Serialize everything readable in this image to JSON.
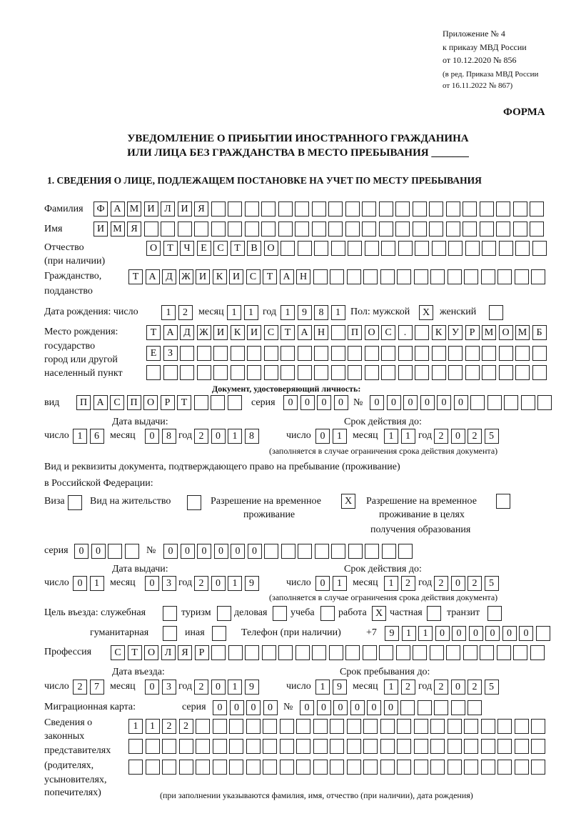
{
  "header": {
    "appendix": "Приложение № 4",
    "order": "к приказу МВД России",
    "order_date": "от 10.12.2020 № 856",
    "edition": "(в ред. Приказа МВД России",
    "edition_date": "от 16.11.2022 № 867)",
    "form_label": "ФОРМА",
    "title_line1": "УВЕДОМЛЕНИЕ О ПРИБЫТИИ ИНОСТРАННОГО ГРАЖДАНИНА",
    "title_line2": "ИЛИ ЛИЦА БЕЗ ГРАЖДАНСТВА В МЕСТО ПРЕБЫВАНИЯ _______",
    "section1": "1. СВЕДЕНИЯ О ЛИЦЕ, ПОДЛЕЖАЩЕМ ПОСТАНОВКЕ НА УЧЕТ ПО МЕСТУ ПРЕБЫВАНИЯ"
  },
  "labels": {
    "surname": "Фамилия",
    "name": "Имя",
    "patronymic": "Отчество",
    "patronymic2": "(при наличии)",
    "citizenship": "Гражданство,",
    "citizenship2": "подданство",
    "birth_date": "Дата рождения:  число",
    "day": "число",
    "month": "месяц",
    "year": "год",
    "sex": "Пол: мужской",
    "female": "женский",
    "birthplace1": "Место рождения:",
    "birthplace2": "государство",
    "birthplace3": "город или другой",
    "birthplace4": "населенный пункт",
    "id_doc": "Документ, удостоверяющий личность:",
    "kind": "вид",
    "series": "серия",
    "number": "№",
    "issue_date": "Дата выдачи:",
    "valid_until": "Срок действия до:",
    "validity_note": "(заполняется в случае ограничения срока действия документа)",
    "right_doc1": "Вид и реквизиты документа, подтверждающего право на пребывание (проживание)",
    "right_doc2": "в Российской Федерации:",
    "visa": "Виза",
    "residence": "Вид на жительство",
    "temp_permit1": "Разрешение на временное",
    "temp_permit2": "проживание",
    "edu_permit1": "Разрешение на временное",
    "edu_permit2": "проживание в целях",
    "edu_permit3": "получения образования",
    "purpose": "Цель въезда: служебная",
    "tourism": "туризм",
    "business": "деловая",
    "study": "учеба",
    "work": "работа",
    "private": "частная",
    "transit": "транзит",
    "humanitarian": "гуманитарная",
    "other": "иная",
    "phone": "Телефон (при наличии)",
    "phone_prefix": "+7",
    "profession": "Профессия",
    "entry_date": "Дата въезда:",
    "stay_until": "Срок пребывания до:",
    "migration_card": "Миграционная карта:",
    "reps1": "Сведения о",
    "reps2": "законных",
    "reps3": "представителях",
    "reps4": "(родителях,",
    "reps5": "усыновителях,",
    "reps6": "попечителях)",
    "reps_note": "(при заполнении указываются фамилия, имя, отчество (при наличии), дата рождения)"
  },
  "values": {
    "surname": "ФАМИЛИЯ",
    "name": "ИМЯ",
    "patronymic": "ОТЧЕСТВО",
    "citizenship": "ТАДЖИКИСТАН",
    "birth_day": "12",
    "birth_month": "11",
    "birth_year": "1981",
    "sex_male": "X",
    "sex_female": "",
    "birthplace_row1": "ТАДЖИКИСТАН ПОС. КУРМОМБ",
    "birthplace_row2": "ЕЗ",
    "birthplace_row3": "",
    "id_kind": "ПАСПОРТ",
    "id_series": "0000",
    "id_number": "000000",
    "id_issue_day": "16",
    "id_issue_month": "08",
    "id_issue_year": "2018",
    "id_valid_day": "01",
    "id_valid_month": "11",
    "id_valid_year": "2025",
    "visa": "",
    "residence": "",
    "temp_permit": "X",
    "edu_permit": "",
    "permit_series": "00",
    "permit_number": "000000",
    "permit_issue_day": "01",
    "permit_issue_month": "03",
    "permit_issue_year": "2019",
    "permit_valid_day": "01",
    "permit_valid_month": "12",
    "permit_valid_year": "2025",
    "purpose_official": "",
    "purpose_tourism": "",
    "purpose_business": "",
    "purpose_study": "",
    "purpose_work": "X",
    "purpose_private": "",
    "purpose_transit": "",
    "purpose_humanitarian": "",
    "purpose_other": "",
    "phone": "911000000",
    "profession": "СТОЛЯР",
    "entry_day": "27",
    "entry_month": "03",
    "entry_year": "2019",
    "stay_day": "19",
    "stay_month": "12",
    "stay_year": "2025",
    "mig_series": "0000",
    "mig_number": "000000",
    "reps_row1": "1122",
    "reps_row2": "",
    "reps_row3": ""
  }
}
